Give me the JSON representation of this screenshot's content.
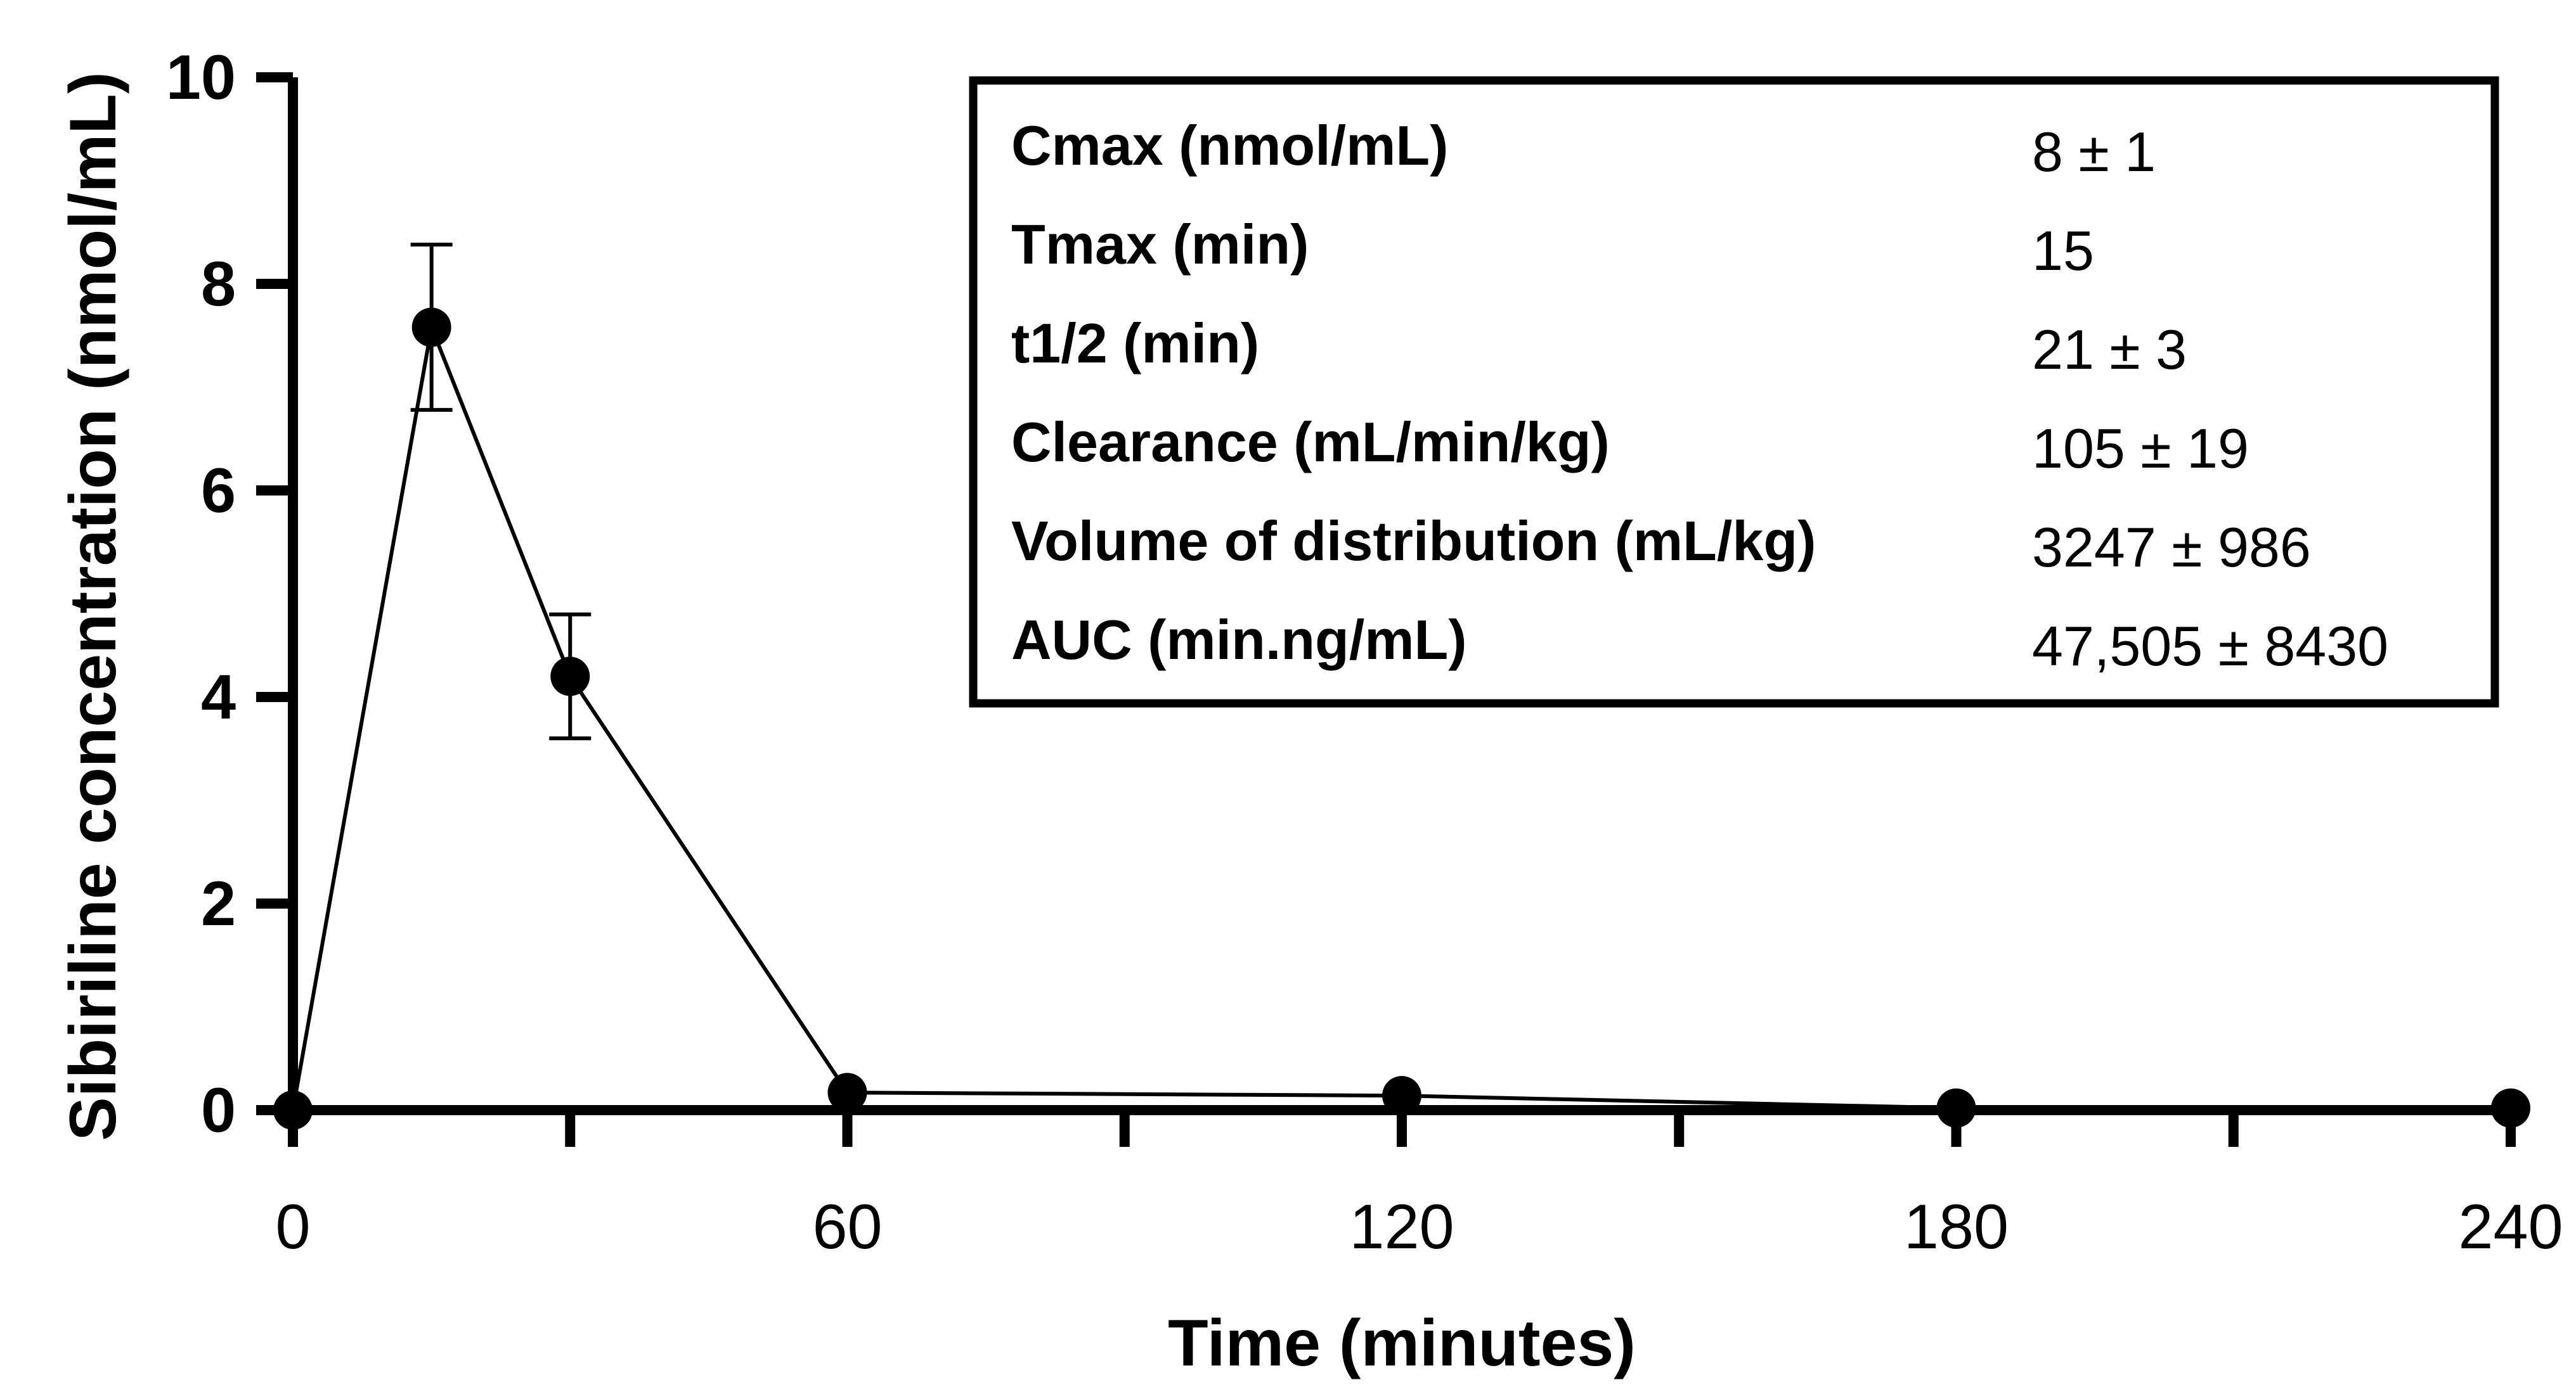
{
  "chart_data": {
    "type": "line",
    "title": "",
    "xlabel": "Time (minutes)",
    "ylabel": "Sibiriline concentration (nmol/mL)",
    "xlim": [
      0,
      240
    ],
    "ylim": [
      0,
      10
    ],
    "xticks": [
      0,
      60,
      120,
      180,
      240
    ],
    "xticks_minor": [
      30,
      90,
      150,
      210
    ],
    "yticks": [
      0,
      2,
      4,
      6,
      8,
      10
    ],
    "grid": false,
    "legend": "none",
    "series": [
      {
        "x": [
          0,
          15,
          30,
          60,
          120,
          180,
          240
        ],
        "y": [
          0,
          7.58,
          4.2,
          0.17,
          0.14,
          0.02,
          0.02
        ],
        "error": [
          0,
          0.8,
          0.6,
          0,
          0,
          0,
          0
        ]
      }
    ],
    "table": {
      "rows": [
        {
          "label": "Cmax (nmol/mL)",
          "value": "8 ± 1"
        },
        {
          "label": "Tmax (min)",
          "value": "15"
        },
        {
          "label": "t1/2 (min)",
          "value": "21 ± 3"
        },
        {
          "label": "Clearance (mL/min/kg)",
          "value": "105 ± 19"
        },
        {
          "label": "Volume of distribution (mL/kg)",
          "value": "3247 ± 986"
        },
        {
          "label": "AUC (min.ng/mL)",
          "value": "47,505 ± 8430"
        }
      ]
    }
  }
}
